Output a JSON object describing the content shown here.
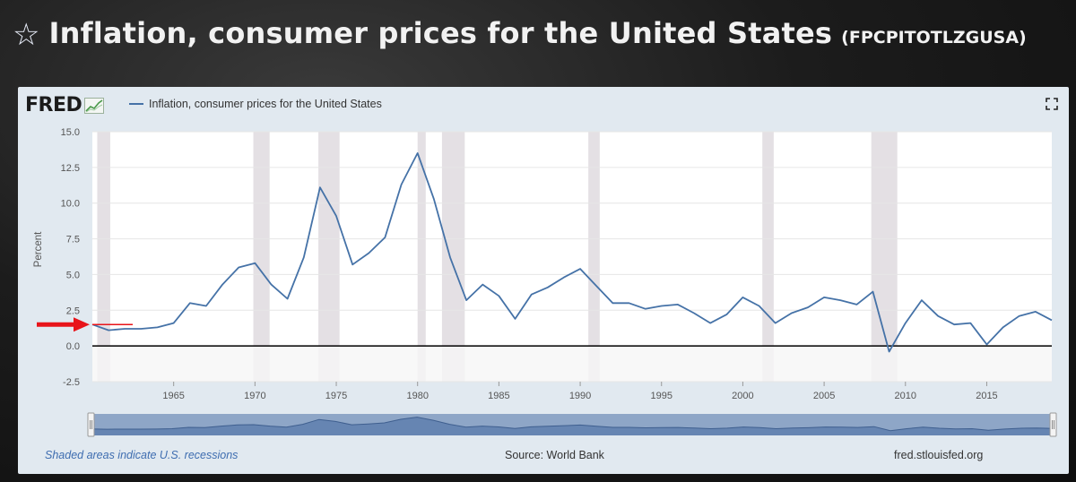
{
  "header": {
    "title": "Inflation, consumer prices for the United States",
    "series_id": "(FPCPITOTLZGUSA)",
    "star_icon": "star-outline-icon"
  },
  "logo": {
    "text": "FRED",
    "icon": "fred-graph-icon"
  },
  "footer": {
    "recession_note": "Shaded areas indicate U.S. recessions",
    "source": "Source: World Bank",
    "link": "fred.stlouisfed.org"
  },
  "colors": {
    "series": "#4572a7",
    "recession": "#e4e0e4",
    "annotation": "#e8141a",
    "note": "#3e6db0"
  },
  "chart_data": {
    "type": "line",
    "title": "",
    "xlabel": "",
    "ylabel": "Percent",
    "xlim": [
      1960,
      2019
    ],
    "ylim": [
      -2.5,
      15.0
    ],
    "yticks": [
      -2.5,
      0.0,
      2.5,
      5.0,
      7.5,
      10.0,
      12.5,
      15.0
    ],
    "ytick_labels": [
      "-2.5",
      "0.0",
      "2.5",
      "5.0",
      "7.5",
      "10.0",
      "12.5",
      "15.0"
    ],
    "xticks": [
      1965,
      1970,
      1975,
      1980,
      1985,
      1990,
      1995,
      2000,
      2005,
      2010,
      2015
    ],
    "xtick_labels": [
      "1965",
      "1970",
      "1975",
      "1980",
      "1985",
      "1990",
      "1995",
      "2000",
      "2005",
      "2010",
      "2015"
    ],
    "grid": true,
    "legend_position": "top-left",
    "series": [
      {
        "name": "Inflation, consumer prices for the United States",
        "x": [
          1960,
          1961,
          1962,
          1963,
          1964,
          1965,
          1966,
          1967,
          1968,
          1969,
          1970,
          1971,
          1972,
          1973,
          1974,
          1975,
          1976,
          1977,
          1978,
          1979,
          1980,
          1981,
          1982,
          1983,
          1984,
          1985,
          1986,
          1987,
          1988,
          1989,
          1990,
          1991,
          1992,
          1993,
          1994,
          1995,
          1996,
          1997,
          1998,
          1999,
          2000,
          2001,
          2002,
          2003,
          2004,
          2005,
          2006,
          2007,
          2008,
          2009,
          2010,
          2011,
          2012,
          2013,
          2014,
          2015,
          2016,
          2017,
          2018,
          2019
        ],
        "values": [
          1.5,
          1.1,
          1.2,
          1.2,
          1.3,
          1.6,
          3.0,
          2.8,
          4.3,
          5.5,
          5.8,
          4.3,
          3.3,
          6.2,
          11.1,
          9.1,
          5.7,
          6.5,
          7.6,
          11.3,
          13.5,
          10.3,
          6.2,
          3.2,
          4.3,
          3.5,
          1.9,
          3.6,
          4.1,
          4.8,
          5.4,
          4.2,
          3.0,
          3.0,
          2.6,
          2.8,
          2.9,
          2.3,
          1.6,
          2.2,
          3.4,
          2.8,
          1.6,
          2.3,
          2.7,
          3.4,
          3.2,
          2.9,
          3.8,
          -0.4,
          1.6,
          3.2,
          2.1,
          1.5,
          1.6,
          0.1,
          1.3,
          2.1,
          2.4,
          1.8
        ]
      }
    ],
    "recessions": [
      [
        1960.3,
        1961.1
      ],
      [
        1969.9,
        1970.9
      ],
      [
        1973.9,
        1975.2
      ],
      [
        1980.0,
        1980.5
      ],
      [
        1981.5,
        1982.9
      ],
      [
        1990.5,
        1991.2
      ],
      [
        2001.2,
        2001.9
      ],
      [
        2007.9,
        2009.5
      ]
    ]
  }
}
